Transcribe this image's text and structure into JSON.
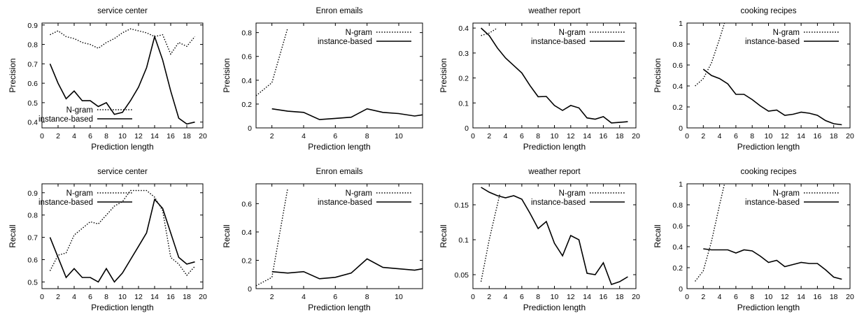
{
  "chart_data": [
    {
      "type": "line",
      "title": "service center",
      "xlabel": "Prediction length",
      "ylabel": "Precision",
      "xlim": [
        0,
        20
      ],
      "ylim": [
        0.37,
        0.91
      ],
      "xticks": [
        0,
        2,
        4,
        6,
        8,
        10,
        12,
        14,
        16,
        18,
        20
      ],
      "yticks": [
        0.4,
        0.5,
        0.6,
        0.7,
        0.8,
        0.9
      ],
      "ytick_labels": [
        "0.4",
        "0.5",
        "0.6",
        "0.7",
        "0.8",
        "0.9"
      ],
      "legend": "bottom-left",
      "series": [
        {
          "name": "N-gram",
          "style": "dotted",
          "x": [
            1,
            2,
            3,
            4,
            5,
            6,
            7,
            8,
            9,
            10,
            11,
            12,
            13,
            14,
            15,
            16,
            17,
            18,
            19
          ],
          "y": [
            0.85,
            0.87,
            0.84,
            0.83,
            0.81,
            0.8,
            0.78,
            0.81,
            0.83,
            0.86,
            0.88,
            0.87,
            0.86,
            0.84,
            0.85,
            0.75,
            0.81,
            0.79,
            0.84
          ]
        },
        {
          "name": "instance-based",
          "style": "solid",
          "x": [
            1,
            2,
            3,
            4,
            5,
            6,
            7,
            8,
            9,
            10,
            11,
            12,
            13,
            14,
            15,
            16,
            17,
            18,
            19
          ],
          "y": [
            0.7,
            0.6,
            0.52,
            0.56,
            0.51,
            0.51,
            0.48,
            0.5,
            0.44,
            0.45,
            0.51,
            0.58,
            0.68,
            0.84,
            0.72,
            0.56,
            0.42,
            0.39,
            0.4
          ]
        }
      ]
    },
    {
      "type": "line",
      "title": "Enron emails",
      "xlabel": "Prediction length",
      "ylabel": "Precision",
      "xlim": [
        1,
        11.5
      ],
      "ylim": [
        0,
        0.88
      ],
      "xticks": [
        2,
        4,
        6,
        8,
        10
      ],
      "yticks": [
        0,
        0.2,
        0.4,
        0.6,
        0.8
      ],
      "ytick_labels": [
        "0",
        "0.2",
        "0.4",
        "0.6",
        "0.8"
      ],
      "legend": "top-right",
      "series": [
        {
          "name": "N-gram",
          "style": "dotted",
          "x": [
            1,
            2,
            3
          ],
          "y": [
            0.27,
            0.38,
            0.84
          ]
        },
        {
          "name": "instance-based",
          "style": "solid",
          "x": [
            2,
            3,
            4,
            5,
            6,
            7,
            8,
            9,
            10,
            11,
            11.5
          ],
          "y": [
            0.16,
            0.14,
            0.13,
            0.07,
            0.08,
            0.09,
            0.16,
            0.13,
            0.12,
            0.1,
            0.11
          ]
        }
      ]
    },
    {
      "type": "line",
      "title": "weather report",
      "xlabel": "Prediction length",
      "ylabel": "Precision",
      "xlim": [
        0,
        20
      ],
      "ylim": [
        0,
        0.42
      ],
      "xticks": [
        0,
        2,
        4,
        6,
        8,
        10,
        12,
        14,
        16,
        18,
        20
      ],
      "yticks": [
        0,
        0.1,
        0.2,
        0.3,
        0.4
      ],
      "ytick_labels": [
        "0",
        "0.1",
        "0.2",
        "0.3",
        "0.4"
      ],
      "legend": "top-right",
      "series": [
        {
          "name": "N-gram",
          "style": "dotted",
          "x": [
            1,
            2,
            3
          ],
          "y": [
            0.37,
            0.38,
            0.4
          ]
        },
        {
          "name": "instance-based",
          "style": "solid",
          "x": [
            1,
            2,
            3,
            4,
            5,
            6,
            7,
            8,
            9,
            10,
            11,
            12,
            13,
            14,
            15,
            16,
            17,
            18,
            19
          ],
          "y": [
            0.4,
            0.37,
            0.32,
            0.28,
            0.25,
            0.22,
            0.17,
            0.125,
            0.126,
            0.09,
            0.07,
            0.09,
            0.08,
            0.04,
            0.035,
            0.045,
            0.02,
            0.022,
            0.025
          ]
        }
      ]
    },
    {
      "type": "line",
      "title": "cooking recipes",
      "xlabel": "Prediction length",
      "ylabel": "Precision",
      "xlim": [
        0,
        20
      ],
      "ylim": [
        0,
        1
      ],
      "xticks": [
        0,
        2,
        4,
        6,
        8,
        10,
        12,
        14,
        16,
        18,
        20
      ],
      "yticks": [
        0,
        0.2,
        0.4,
        0.6,
        0.8,
        1
      ],
      "ytick_labels": [
        "0",
        "0.2",
        "0.4",
        "0.6",
        "0.8",
        "1"
      ],
      "legend": "top-right",
      "series": [
        {
          "name": "N-gram",
          "style": "dotted",
          "x": [
            1,
            2,
            3,
            4,
            4.6
          ],
          "y": [
            0.4,
            0.47,
            0.62,
            0.85,
            1.0
          ]
        },
        {
          "name": "instance-based",
          "style": "solid",
          "x": [
            2,
            3,
            4,
            5,
            6,
            7,
            8,
            9,
            10,
            11,
            12,
            13,
            14,
            15,
            16,
            17,
            18,
            19
          ],
          "y": [
            0.56,
            0.5,
            0.47,
            0.42,
            0.32,
            0.32,
            0.27,
            0.21,
            0.16,
            0.17,
            0.12,
            0.13,
            0.15,
            0.14,
            0.12,
            0.07,
            0.04,
            0.03
          ]
        }
      ]
    },
    {
      "type": "line",
      "title": "service center",
      "xlabel": "Prediction length",
      "ylabel": "Recall",
      "xlim": [
        0,
        20
      ],
      "ylim": [
        0.47,
        0.94
      ],
      "xticks": [
        0,
        2,
        4,
        6,
        8,
        10,
        12,
        14,
        16,
        18,
        20
      ],
      "yticks": [
        0.5,
        0.6,
        0.7,
        0.8,
        0.9
      ],
      "ytick_labels": [
        "0.5",
        "0.6",
        "0.7",
        "0.8",
        "0.9"
      ],
      "legend": "top-left",
      "series": [
        {
          "name": "N-gram",
          "style": "dotted",
          "x": [
            1,
            2,
            3,
            4,
            5,
            6,
            7,
            8,
            9,
            10,
            11,
            12,
            13,
            14,
            15,
            16,
            17,
            18,
            19
          ],
          "y": [
            0.55,
            0.62,
            0.63,
            0.71,
            0.74,
            0.77,
            0.76,
            0.8,
            0.84,
            0.86,
            0.91,
            0.91,
            0.91,
            0.88,
            0.82,
            0.61,
            0.58,
            0.53,
            0.57
          ]
        },
        {
          "name": "instance-based",
          "style": "solid",
          "x": [
            1,
            2,
            3,
            4,
            5,
            6,
            7,
            8,
            9,
            10,
            11,
            12,
            13,
            14,
            15,
            16,
            17,
            18,
            19
          ],
          "y": [
            0.7,
            0.61,
            0.52,
            0.56,
            0.52,
            0.52,
            0.5,
            0.56,
            0.5,
            0.54,
            0.6,
            0.66,
            0.72,
            0.87,
            0.83,
            0.72,
            0.61,
            0.58,
            0.59
          ]
        }
      ]
    },
    {
      "type": "line",
      "title": "Enron emails",
      "xlabel": "Prediction length",
      "ylabel": "Recall",
      "xlim": [
        1,
        11.5
      ],
      "ylim": [
        0,
        0.74
      ],
      "xticks": [
        2,
        4,
        6,
        8,
        10
      ],
      "yticks": [
        0,
        0.2,
        0.4,
        0.6
      ],
      "ytick_labels": [
        "0",
        "0.2",
        "0.4",
        "0.6"
      ],
      "legend": "top-right",
      "series": [
        {
          "name": "N-gram",
          "style": "dotted",
          "x": [
            1,
            2,
            3
          ],
          "y": [
            0.02,
            0.08,
            0.71
          ]
        },
        {
          "name": "instance-based",
          "style": "solid",
          "x": [
            2,
            3,
            4,
            5,
            6,
            7,
            8,
            9,
            10,
            11,
            11.5
          ],
          "y": [
            0.12,
            0.11,
            0.12,
            0.07,
            0.08,
            0.11,
            0.21,
            0.15,
            0.14,
            0.13,
            0.14
          ]
        }
      ]
    },
    {
      "type": "line",
      "title": "weather report",
      "xlabel": "Prediction length",
      "ylabel": "Recall",
      "xlim": [
        0,
        20
      ],
      "ylim": [
        0.03,
        0.18
      ],
      "xticks": [
        0,
        2,
        4,
        6,
        8,
        10,
        12,
        14,
        16,
        18,
        20
      ],
      "yticks": [
        0.05,
        0.1,
        0.15
      ],
      "ytick_labels": [
        "0.05",
        "0.1",
        "0.15"
      ],
      "legend": "top-right",
      "series": [
        {
          "name": "N-gram",
          "style": "dotted",
          "x": [
            1,
            2,
            3.3
          ],
          "y": [
            0.04,
            0.1,
            0.165
          ]
        },
        {
          "name": "instance-based",
          "style": "solid",
          "x": [
            1,
            2,
            3,
            4,
            5,
            6,
            7,
            8,
            9,
            10,
            11,
            12,
            13,
            14,
            15,
            16,
            17,
            18,
            19
          ],
          "y": [
            0.175,
            0.168,
            0.163,
            0.16,
            0.163,
            0.158,
            0.138,
            0.116,
            0.126,
            0.095,
            0.077,
            0.106,
            0.1,
            0.052,
            0.05,
            0.067,
            0.036,
            0.04,
            0.047
          ]
        }
      ]
    },
    {
      "type": "line",
      "title": "cooking recipes",
      "xlabel": "Prediction length",
      "ylabel": "Recall",
      "xlim": [
        0,
        20
      ],
      "ylim": [
        0,
        1
      ],
      "xticks": [
        0,
        2,
        4,
        6,
        8,
        10,
        12,
        14,
        16,
        18,
        20
      ],
      "yticks": [
        0,
        0.2,
        0.4,
        0.6,
        0.8,
        1
      ],
      "ytick_labels": [
        "0",
        "0.2",
        "0.4",
        "0.6",
        "0.8",
        "1"
      ],
      "legend": "top-right",
      "series": [
        {
          "name": "N-gram",
          "style": "dotted",
          "x": [
            1,
            2,
            3,
            4,
            4.6
          ],
          "y": [
            0.07,
            0.17,
            0.45,
            0.8,
            1.0
          ]
        },
        {
          "name": "instance-based",
          "style": "solid",
          "x": [
            2,
            3,
            4,
            5,
            6,
            7,
            8,
            9,
            10,
            11,
            12,
            13,
            14,
            15,
            16,
            17,
            18,
            19
          ],
          "y": [
            0.38,
            0.37,
            0.37,
            0.37,
            0.34,
            0.37,
            0.36,
            0.31,
            0.25,
            0.27,
            0.21,
            0.23,
            0.25,
            0.24,
            0.24,
            0.18,
            0.11,
            0.09
          ]
        }
      ]
    }
  ]
}
